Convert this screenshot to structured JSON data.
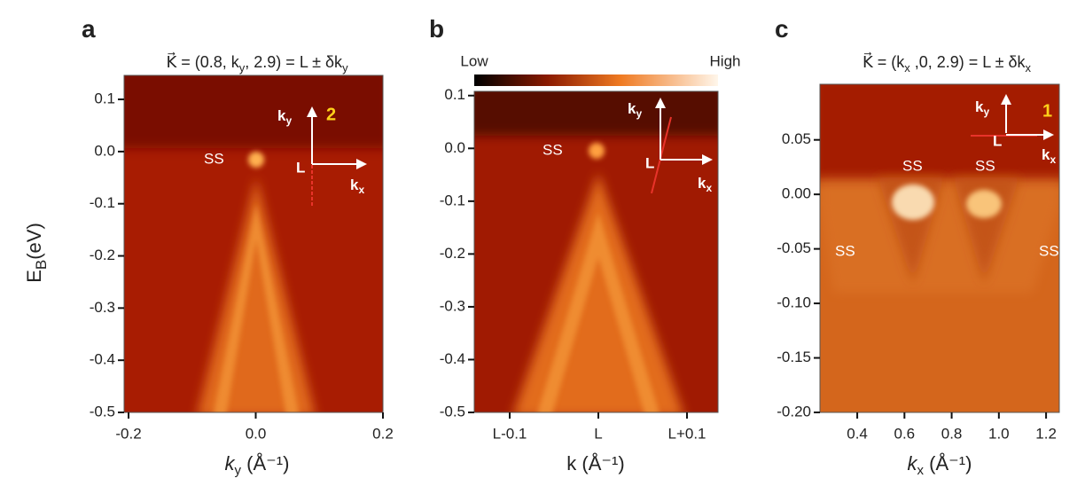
{
  "chart_data": [
    {
      "type": "heatmap",
      "panel": "a",
      "title": [
        "K⃗ = (0.8, k",
        "y",
        ", 2.9) = L ± δk",
        "y"
      ],
      "ylabel": [
        "E",
        "B",
        "(eV)"
      ],
      "xlabel": [
        "k",
        "y",
        "  (Å⁻¹)"
      ],
      "xlim": [
        -0.207,
        0.2
      ],
      "ylim": [
        -0.5,
        0.146
      ],
      "xticks": [
        -0.2,
        {
          "value": 0,
          "label": "0.0"
        },
        0.2
      ],
      "yticks": [
        0.1,
        {
          "value": 0,
          "label": "0.0"
        },
        -0.1,
        -0.2,
        -0.3,
        -0.4,
        -0.5
      ],
      "annotations": [
        "SS",
        "k",
        "y",
        "L",
        "k",
        "x",
        "2"
      ]
    },
    {
      "type": "heatmap",
      "panel": "b",
      "colorbar": {
        "low": "Low",
        "high": "High"
      },
      "xlabel": [
        "k (Å⁻¹)"
      ],
      "xlim": [
        -0.14,
        0.135
      ],
      "ylim": [
        -0.5,
        0.108
      ],
      "xticks": [
        {
          "value": -0.1,
          "label": "L-0.1"
        },
        {
          "value": 0,
          "label": "L"
        },
        {
          "value": 0.1,
          "label": "L+0.1"
        }
      ],
      "yticks": [
        0.1,
        {
          "value": 0,
          "label": "0.0"
        },
        -0.1,
        -0.2,
        -0.3,
        -0.4,
        -0.5
      ],
      "annotations": [
        "SS",
        "k",
        "y",
        "L",
        "k",
        "x"
      ]
    },
    {
      "type": "heatmap",
      "panel": "c",
      "title": [
        "K⃗ = (k",
        "x",
        " ,0, 2.9) = L ± δk",
        "x"
      ],
      "xlabel": [
        "k",
        "x",
        " (Å⁻¹)"
      ],
      "xlim": [
        0.242,
        1.256
      ],
      "ylim": [
        -0.2,
        0.101
      ],
      "xticks": [
        0.4,
        0.6,
        0.8,
        {
          "value": 1,
          "label": "1.0"
        },
        1.2
      ],
      "yticks": [
        0.05,
        {
          "value": 0,
          "label": "0.00"
        },
        -0.05,
        {
          "value": -0.1,
          "label": "-0.10"
        },
        -0.15,
        {
          "value": -0.2,
          "label": "-0.20"
        }
      ],
      "annotations": [
        "SS",
        "SS",
        "SS",
        "SS",
        "k",
        "y",
        "L",
        "k",
        "x",
        "1"
      ]
    }
  ]
}
